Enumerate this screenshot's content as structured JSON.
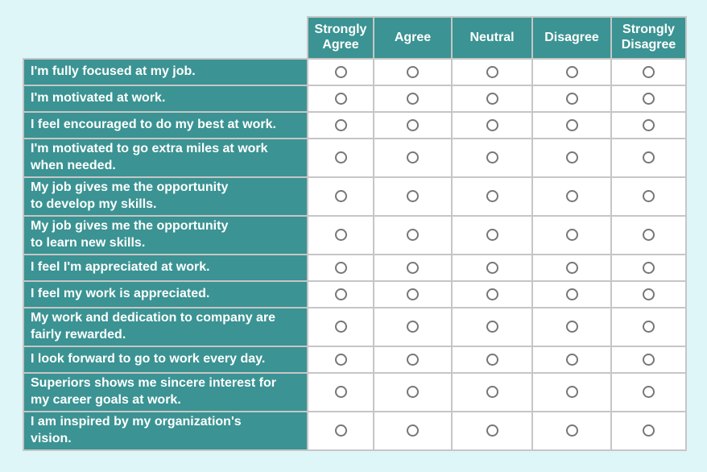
{
  "page": {
    "background_color": "#DFF6F8"
  },
  "colors": {
    "accent_teal": "#3B9393",
    "cell_border": "#C6C6C6",
    "cell_background": "#FFFFFF",
    "radio_border": "#777777",
    "header_text": "#FFFFFF"
  },
  "survey": {
    "columns": [
      "Strongly\nAgree",
      "Agree",
      "Neutral",
      "Disagree",
      "Strongly\nDisagree"
    ],
    "rows": [
      {
        "label": "I'm fully focused at my job.",
        "selected": null
      },
      {
        "label": "I'm motivated at work.",
        "selected": null
      },
      {
        "label": "I feel encouraged to do my best at work.",
        "selected": null
      },
      {
        "label": "I'm motivated to go extra miles at work\nwhen needed.",
        "selected": null
      },
      {
        "label": "My job gives me the opportunity\nto develop my skills.",
        "selected": null
      },
      {
        "label": "My job gives me the opportunity\nto learn new skills.",
        "selected": null
      },
      {
        "label": "I feel I'm appreciated at work.",
        "selected": null
      },
      {
        "label": "I feel my work is appreciated.",
        "selected": null
      },
      {
        "label": "My work and dedication to company are\nfairly rewarded.",
        "selected": null
      },
      {
        "label": "I look forward to go to work every day.",
        "selected": null
      },
      {
        "label": "Superiors shows me sincere interest for\nmy career goals at work.",
        "selected": null
      },
      {
        "label": "I am inspired by my organization's\nvision.",
        "selected": null
      }
    ]
  }
}
